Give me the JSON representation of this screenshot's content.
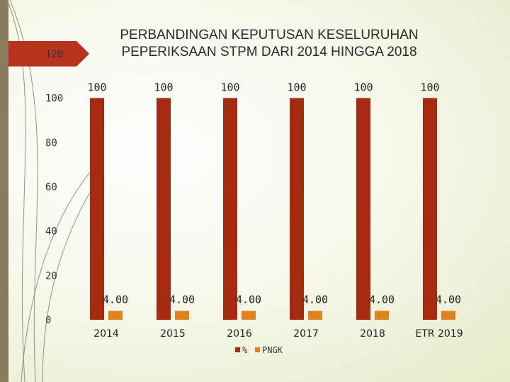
{
  "colors": {
    "series_percent": "#a52a10",
    "series_pngk": "#e0821e",
    "accent_tab": "#b8331d"
  },
  "chart_data": {
    "type": "bar",
    "title_lines": [
      "PERBANDINGAN KEPUTUSAN KESELURUHAN",
      "PEPERIKSAAN STPM DARI 2014 HINGGA 2018"
    ],
    "categories": [
      "2014",
      "2015",
      "2016",
      "2017",
      "2018",
      "ETR 2019"
    ],
    "series": [
      {
        "name": "%",
        "values": [
          100,
          100,
          100,
          100,
          100,
          100
        ],
        "labels": [
          "100",
          "100",
          "100",
          "100",
          "100",
          "100"
        ]
      },
      {
        "name": "PNGK",
        "values": [
          4.0,
          4.0,
          4.0,
          4.0,
          4.0,
          4.0
        ],
        "labels": [
          "4.00",
          "4.00",
          "4.00",
          "4.00",
          "4.00",
          "4.00"
        ]
      }
    ],
    "ylim": [
      0,
      120
    ],
    "yticks": [
      0,
      20,
      40,
      60,
      80,
      100,
      120
    ],
    "grid": false,
    "legend_position": "bottom"
  }
}
